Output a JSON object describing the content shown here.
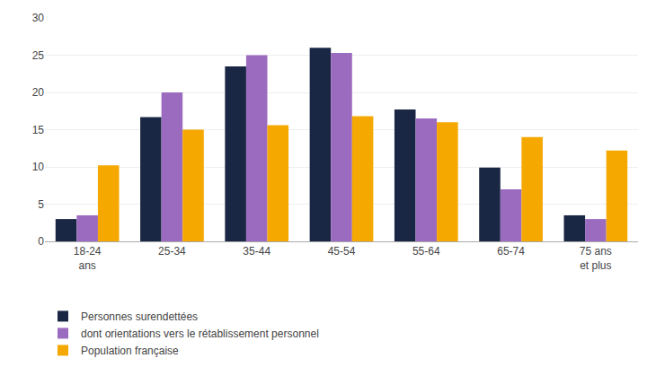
{
  "chart_data": {
    "type": "bar",
    "categories": [
      "18-24\nans",
      "25-34",
      "35-44",
      "45-54",
      "55-64",
      "65-74",
      "75 ans\net plus"
    ],
    "series": [
      {
        "name": "Personnes surendettées",
        "color": "#1a2744",
        "values": [
          3.0,
          16.7,
          23.5,
          26.0,
          17.7,
          9.9,
          3.5
        ]
      },
      {
        "name": "dont orientations vers le rétablissement personnel",
        "color": "#9b6bbf",
        "values": [
          3.5,
          20.0,
          25.0,
          25.3,
          16.5,
          7.0,
          3.0
        ]
      },
      {
        "name": "Population française",
        "color": "#f5a800",
        "values": [
          10.2,
          15.0,
          15.6,
          16.8,
          16.0,
          14.0,
          12.2
        ]
      }
    ],
    "ylim": [
      0,
      30
    ],
    "yticks": [
      0,
      5,
      10,
      15,
      20,
      25,
      30
    ],
    "grid": true,
    "legend": "bottom"
  }
}
